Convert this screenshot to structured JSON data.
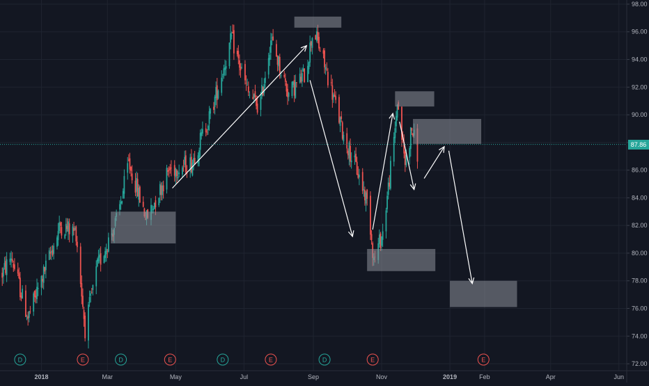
{
  "chart_data": {
    "type": "candlestick",
    "y_axis": {
      "ticks": [
        "72.00",
        "74.00",
        "76.00",
        "78.00",
        "80.00",
        "82.00",
        "84.00",
        "86.00",
        "88.00",
        "90.00",
        "92.00",
        "94.00",
        "96.00",
        "98.00"
      ],
      "ylim": [
        71.5,
        98.3
      ]
    },
    "x_axis": {
      "ticks": [
        {
          "label": "2018",
          "date": "2018-01-01",
          "bold": true
        },
        {
          "label": "Mar",
          "date": "2018-03-01",
          "bold": false
        },
        {
          "label": "May",
          "date": "2018-05-01",
          "bold": false
        },
        {
          "label": "Jul",
          "date": "2018-07-01",
          "bold": false
        },
        {
          "label": "Sep",
          "date": "2018-09-01",
          "bold": false
        },
        {
          "label": "Nov",
          "date": "2018-11-01",
          "bold": false
        },
        {
          "label": "2019",
          "date": "2019-01-01",
          "bold": true
        },
        {
          "label": "Feb",
          "date": "2019-02-01",
          "bold": false
        },
        {
          "label": "Apr",
          "date": "2019-04-01",
          "bold": false
        },
        {
          "label": "Jun",
          "date": "2019-06-01",
          "bold": false
        }
      ],
      "xlim": [
        "2017-11-25",
        "2019-06-08"
      ]
    },
    "current_price": {
      "value": 87.86,
      "label": "87.86"
    },
    "price_path": [
      {
        "date": "2017-11-27",
        "value": 78.5
      },
      {
        "date": "2017-12-05",
        "value": 79.8
      },
      {
        "date": "2017-12-20",
        "value": 75.3
      },
      {
        "date": "2018-01-05",
        "value": 79.0
      },
      {
        "date": "2018-01-18",
        "value": 82.0
      },
      {
        "date": "2018-02-01",
        "value": 81.5
      },
      {
        "date": "2018-02-09",
        "value": 74.5
      },
      {
        "date": "2018-02-20",
        "value": 79.0
      },
      {
        "date": "2018-03-10",
        "value": 82.5
      },
      {
        "date": "2018-03-20",
        "value": 86.5
      },
      {
        "date": "2018-04-05",
        "value": 82.5
      },
      {
        "date": "2018-04-25",
        "value": 86.0
      },
      {
        "date": "2018-05-15",
        "value": 86.5
      },
      {
        "date": "2018-06-01",
        "value": 90.0
      },
      {
        "date": "2018-06-20",
        "value": 95.5
      },
      {
        "date": "2018-07-05",
        "value": 91.5
      },
      {
        "date": "2018-07-15",
        "value": 90.5
      },
      {
        "date": "2018-07-25",
        "value": 95.5
      },
      {
        "date": "2018-08-10",
        "value": 91.5
      },
      {
        "date": "2018-08-25",
        "value": 93.0
      },
      {
        "date": "2018-09-01",
        "value": 96.3
      },
      {
        "date": "2018-09-15",
        "value": 92.5
      },
      {
        "date": "2018-09-28",
        "value": 88.5
      },
      {
        "date": "2018-10-10",
        "value": 86.0
      },
      {
        "date": "2018-10-20",
        "value": 83.5
      },
      {
        "date": "2018-10-25",
        "value": 79.5
      },
      {
        "date": "2018-11-02",
        "value": 81.5
      },
      {
        "date": "2018-11-12",
        "value": 88.0
      },
      {
        "date": "2018-11-15",
        "value": 91.0
      },
      {
        "date": "2018-11-22",
        "value": 86.5
      },
      {
        "date": "2018-11-28",
        "value": 89.0
      },
      {
        "date": "2018-12-03",
        "value": 87.2
      }
    ],
    "events": [
      {
        "label": "D",
        "date": "2017-12-13",
        "color": "#26a69a"
      },
      {
        "label": "E",
        "date": "2018-02-07",
        "color": "#ef5350"
      },
      {
        "label": "D",
        "date": "2018-03-13",
        "color": "#26a69a"
      },
      {
        "label": "E",
        "date": "2018-04-26",
        "color": "#ef5350"
      },
      {
        "label": "D",
        "date": "2018-06-12",
        "color": "#26a69a"
      },
      {
        "label": "E",
        "date": "2018-07-25",
        "color": "#ef5350"
      },
      {
        "label": "D",
        "date": "2018-09-11",
        "color": "#26a69a"
      },
      {
        "label": "E",
        "date": "2018-10-24",
        "color": "#ef5350"
      },
      {
        "label": "E",
        "date": "2019-01-31",
        "color": "#ef5350"
      }
    ],
    "zones": [
      {
        "date_from": "2018-03-04",
        "date_to": "2018-05-01",
        "value_from": 80.7,
        "value_to": 83.0
      },
      {
        "date_from": "2018-08-15",
        "date_to": "2018-09-26",
        "value_from": 96.3,
        "value_to": 97.1
      },
      {
        "date_from": "2018-10-19",
        "date_to": "2018-12-19",
        "value_from": 78.7,
        "value_to": 80.3
      },
      {
        "date_from": "2018-11-13",
        "date_to": "2018-12-18",
        "value_from": 90.6,
        "value_to": 91.7
      },
      {
        "date_from": "2018-11-29",
        "date_to": "2019-01-29",
        "value_from": 87.9,
        "value_to": 89.7
      },
      {
        "date_from": "2019-01-01",
        "date_to": "2019-03-02",
        "value_from": 76.1,
        "value_to": 78.0
      }
    ],
    "arrows": [
      {
        "from": {
          "date": "2018-04-28",
          "value": 84.7
        },
        "to": {
          "date": "2018-08-26",
          "value": 95.0
        }
      },
      {
        "from": {
          "date": "2018-08-29",
          "value": 92.5
        },
        "to": {
          "date": "2018-10-06",
          "value": 81.2
        }
      },
      {
        "from": {
          "date": "2018-10-24",
          "value": 81.7
        },
        "to": {
          "date": "2018-11-11",
          "value": 90.1
        }
      },
      {
        "from": {
          "date": "2018-11-17",
          "value": 89.5
        },
        "to": {
          "date": "2018-11-30",
          "value": 84.6
        }
      },
      {
        "from": {
          "date": "2018-12-09",
          "value": 85.4
        },
        "to": {
          "date": "2018-12-27",
          "value": 87.7
        }
      },
      {
        "from": {
          "date": "2018-12-31",
          "value": 87.4
        },
        "to": {
          "date": "2019-01-21",
          "value": 77.8
        }
      }
    ],
    "colors": {
      "background": "#131722",
      "grid": "#1f2430",
      "up": "#26a69a",
      "down": "#ef5350",
      "axis_text": "#b2b5be",
      "zone_fill": "#8c8f99",
      "arrow": "#ffffff",
      "price_line": "#26a69a"
    }
  }
}
